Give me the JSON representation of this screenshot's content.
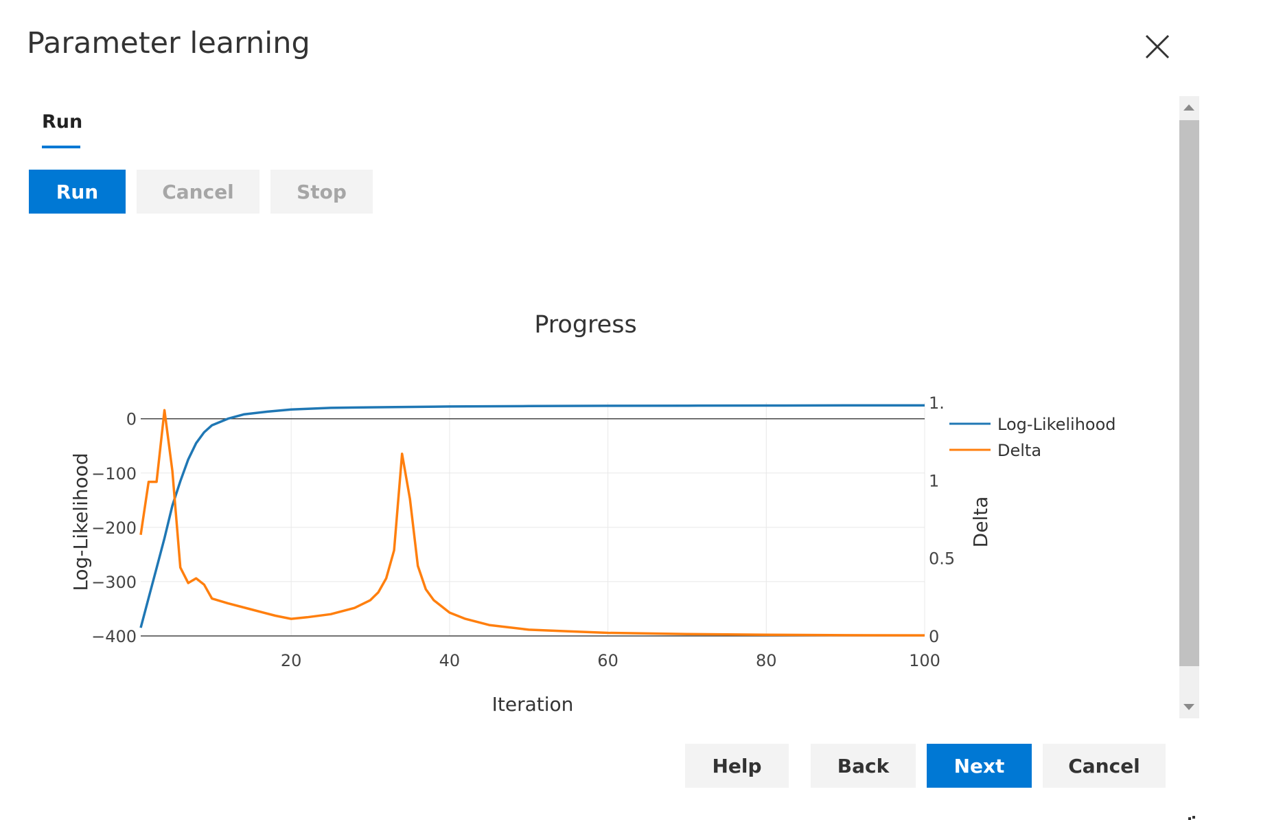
{
  "dialog": {
    "title": "Parameter learning",
    "close_icon": "close-icon"
  },
  "tabs": [
    {
      "label": "Run",
      "active": true
    }
  ],
  "run_controls": {
    "run_label": "Run",
    "cancel_label": "Cancel",
    "stop_label": "Stop"
  },
  "footer": {
    "help_label": "Help",
    "back_label": "Back",
    "next_label": "Next",
    "cancel_label": "Cancel"
  },
  "colors": {
    "accent": "#0078d4",
    "log_likelihood": "#1f77b4",
    "delta": "#ff7f0e"
  },
  "chart_data": {
    "type": "line",
    "title": "Progress",
    "xlabel": "Iteration",
    "ylabel": "Log-Likelihood",
    "y2label": "Delta",
    "xlim": [
      1,
      100
    ],
    "ylim": [
      -400,
      30
    ],
    "y2lim": [
      0,
      1.5
    ],
    "x_ticks": [
      "20",
      "40",
      "60",
      "80",
      "100"
    ],
    "y_ticks": [
      "0",
      "−100",
      "−200",
      "−300",
      "−400"
    ],
    "y2_ticks": [
      "1.",
      "1",
      "0.5",
      "0"
    ],
    "legend_position": "right",
    "grid": true,
    "series": [
      {
        "name": "Log-Likelihood",
        "axis": "y",
        "x": [
          1,
          2,
          3,
          4,
          5,
          6,
          7,
          8,
          9,
          10,
          12,
          14,
          17,
          20,
          25,
          30,
          40,
          50,
          60,
          70,
          80,
          90,
          100
        ],
        "y": [
          -385,
          -330,
          -275,
          -220,
          -160,
          -115,
          -75,
          -45,
          -25,
          -12,
          0,
          8,
          13,
          17,
          20,
          21,
          22.5,
          23.3,
          23.8,
          24.1,
          24.3,
          24.5,
          24.6
        ]
      },
      {
        "name": "Delta",
        "axis": "y2",
        "x": [
          1,
          2,
          3,
          4,
          5,
          6,
          7,
          8,
          9,
          10,
          12,
          15,
          18,
          20,
          22,
          25,
          28,
          30,
          31,
          32,
          33,
          34,
          35,
          36,
          37,
          38,
          40,
          42,
          45,
          50,
          55,
          60,
          70,
          80,
          90,
          100
        ],
        "y": [
          0.65,
          0.99,
          0.99,
          1.45,
          1.06,
          0.44,
          0.34,
          0.37,
          0.33,
          0.24,
          0.21,
          0.17,
          0.13,
          0.11,
          0.12,
          0.14,
          0.18,
          0.23,
          0.28,
          0.37,
          0.55,
          1.17,
          0.88,
          0.45,
          0.3,
          0.23,
          0.15,
          0.11,
          0.07,
          0.04,
          0.03,
          0.02,
          0.012,
          0.008,
          0.005,
          0.004
        ]
      }
    ]
  }
}
